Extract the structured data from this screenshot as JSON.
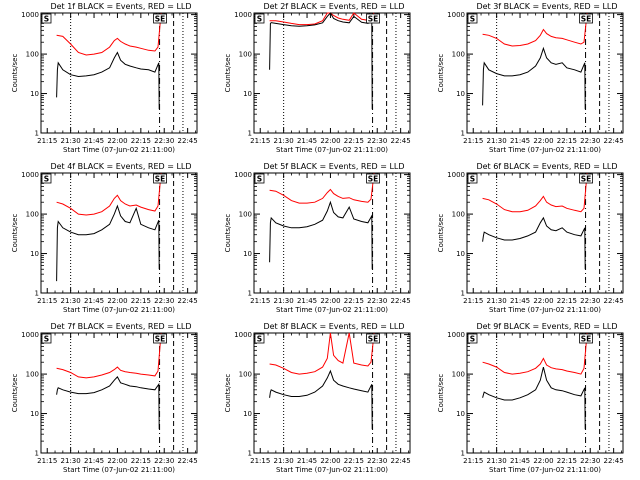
{
  "chart_data": {
    "type": "line",
    "x_tick_labels": [
      "21:15",
      "21:30",
      "21:45",
      "22:00",
      "22:15",
      "22:30",
      "22:45"
    ],
    "x_tick_minutes": [
      15,
      30,
      45,
      60,
      75,
      90,
      105
    ],
    "xlim_minutes": [
      11,
      111
    ],
    "y_tick_labels": [
      "1",
      "10",
      "100",
      "1000"
    ],
    "y_tick_values": [
      1,
      10,
      100,
      1000
    ],
    "ylim": [
      1,
      1100
    ],
    "y_scale": "log",
    "xlabel": "Start Time (07-Jun-02 21:11:00)",
    "ylabel": "Counts/sec",
    "series_names": [
      "Events",
      "LLD"
    ],
    "series_colors": {
      "Events": "#000000",
      "LLD": "#ff0000"
    },
    "markers": {
      "dotted_lines_minutes": [
        30,
        102
      ],
      "dash_dot_line_minutes": 87,
      "dashed_line_minutes": 96,
      "segment_start_box": "S",
      "segment_end_box": "SE"
    },
    "panels": [
      {
        "title": "Det 1f BLACK = Events, RED = LLD",
        "events": {
          "x": [
            21,
            21.5,
            22,
            25,
            30,
            35,
            40,
            45,
            50,
            55,
            58,
            60,
            62,
            65,
            68,
            72,
            75,
            80,
            84,
            86.5,
            86.8
          ],
          "y": [
            8,
            40,
            60,
            40,
            30,
            27,
            28,
            30,
            35,
            45,
            80,
            110,
            70,
            55,
            50,
            45,
            42,
            40,
            35,
            60,
            4
          ]
        },
        "lld": {
          "x": [
            21,
            25,
            30,
            35,
            40,
            45,
            50,
            55,
            58,
            60,
            62,
            65,
            68,
            72,
            75,
            80,
            84,
            86,
            88
          ],
          "y": [
            300,
            280,
            180,
            110,
            95,
            100,
            110,
            150,
            220,
            250,
            210,
            180,
            160,
            150,
            140,
            125,
            120,
            150,
            1100
          ]
        }
      },
      {
        "title": "Det 2f BLACK = Events, RED = LLD",
        "events": {
          "x": [
            21,
            21.5,
            22,
            25,
            30,
            35,
            40,
            45,
            50,
            55,
            58,
            60,
            62,
            65,
            68,
            72,
            75,
            80,
            84,
            86.5,
            86.8
          ],
          "y": [
            40,
            600,
            630,
            600,
            560,
            520,
            510,
            520,
            550,
            620,
            900,
            1200,
            800,
            700,
            650,
            620,
            900,
            640,
            600,
            650,
            4
          ]
        },
        "lld": {
          "x": [
            21,
            25,
            30,
            35,
            40,
            45,
            50,
            55,
            58,
            60,
            62,
            65,
            68,
            72,
            75,
            80,
            84,
            86,
            88
          ],
          "y": [
            700,
            700,
            650,
            600,
            560,
            560,
            580,
            700,
            1100,
            1300,
            950,
            820,
            760,
            720,
            1100,
            760,
            720,
            900,
            1100
          ]
        }
      },
      {
        "title": "Det 3f BLACK = Events, RED = LLD",
        "events": {
          "x": [
            21,
            21.5,
            22,
            25,
            30,
            35,
            40,
            45,
            50,
            55,
            58,
            60,
            62,
            65,
            68,
            72,
            75,
            80,
            84,
            86.5,
            86.8
          ],
          "y": [
            5,
            40,
            60,
            40,
            32,
            28,
            28,
            30,
            35,
            50,
            80,
            140,
            80,
            60,
            55,
            60,
            45,
            40,
            35,
            60,
            4
          ]
        },
        "lld": {
          "x": [
            21,
            25,
            30,
            35,
            40,
            45,
            50,
            55,
            58,
            60,
            62,
            65,
            68,
            72,
            75,
            80,
            84,
            86,
            88
          ],
          "y": [
            320,
            300,
            250,
            180,
            160,
            165,
            180,
            220,
            300,
            420,
            330,
            280,
            260,
            250,
            230,
            200,
            180,
            200,
            1100
          ]
        }
      },
      {
        "title": "Det 4f BLACK = Events, RED = LLD",
        "events": {
          "x": [
            21,
            21.5,
            22,
            25,
            30,
            35,
            40,
            45,
            50,
            55,
            58,
            60,
            62,
            65,
            68,
            72,
            75,
            80,
            84,
            86.5,
            86.8
          ],
          "y": [
            2,
            45,
            65,
            45,
            35,
            30,
            30,
            32,
            40,
            55,
            100,
            160,
            90,
            65,
            60,
            140,
            55,
            45,
            40,
            70,
            4
          ]
        },
        "lld": {
          "x": [
            21,
            25,
            30,
            35,
            40,
            45,
            50,
            55,
            58,
            60,
            62,
            65,
            68,
            72,
            75,
            80,
            84,
            86,
            88
          ],
          "y": [
            200,
            180,
            140,
            100,
            95,
            100,
            115,
            160,
            250,
            300,
            220,
            180,
            160,
            170,
            150,
            130,
            120,
            160,
            1100
          ]
        }
      },
      {
        "title": "Det 5f BLACK = Events, RED = LLD",
        "events": {
          "x": [
            21,
            21.5,
            22,
            25,
            30,
            35,
            40,
            45,
            50,
            55,
            58,
            60,
            62,
            65,
            68,
            72,
            75,
            80,
            84,
            86.5,
            86.8
          ],
          "y": [
            6,
            60,
            80,
            60,
            50,
            45,
            45,
            48,
            55,
            70,
            120,
            200,
            110,
            85,
            80,
            150,
            75,
            65,
            60,
            90,
            4
          ]
        },
        "lld": {
          "x": [
            21,
            25,
            30,
            35,
            40,
            45,
            50,
            55,
            58,
            60,
            62,
            65,
            68,
            72,
            75,
            80,
            84,
            86,
            88
          ],
          "y": [
            400,
            380,
            300,
            220,
            190,
            190,
            200,
            250,
            350,
            420,
            330,
            280,
            250,
            260,
            230,
            210,
            200,
            240,
            1100
          ]
        }
      },
      {
        "title": "Det 6f BLACK = Events, RED = LLD",
        "events": {
          "x": [
            21,
            21.5,
            22,
            25,
            30,
            35,
            40,
            45,
            50,
            55,
            58,
            60,
            62,
            65,
            68,
            72,
            75,
            80,
            84,
            86.5,
            86.8
          ],
          "y": [
            20,
            28,
            35,
            30,
            25,
            22,
            22,
            24,
            28,
            35,
            60,
            80,
            50,
            40,
            38,
            45,
            35,
            30,
            28,
            45,
            4
          ]
        },
        "lld": {
          "x": [
            21,
            25,
            30,
            35,
            40,
            45,
            50,
            55,
            58,
            60,
            62,
            65,
            68,
            72,
            75,
            80,
            84,
            86,
            88
          ],
          "y": [
            250,
            230,
            180,
            130,
            115,
            115,
            125,
            160,
            220,
            280,
            200,
            170,
            155,
            160,
            140,
            125,
            115,
            140,
            1100
          ]
        }
      },
      {
        "title": "Det 7f BLACK = Events, RED = LLD",
        "events": {
          "x": [
            21,
            21.5,
            22,
            25,
            30,
            35,
            40,
            45,
            50,
            55,
            58,
            60,
            62,
            65,
            68,
            72,
            75,
            80,
            84,
            86.5,
            86.8
          ],
          "y": [
            30,
            40,
            45,
            40,
            35,
            32,
            32,
            34,
            40,
            50,
            70,
            85,
            60,
            55,
            50,
            48,
            45,
            42,
            40,
            55,
            4
          ]
        },
        "lld": {
          "x": [
            21,
            25,
            30,
            35,
            40,
            45,
            50,
            55,
            58,
            60,
            62,
            65,
            68,
            72,
            75,
            80,
            84,
            86,
            88
          ],
          "y": [
            140,
            130,
            110,
            85,
            80,
            85,
            95,
            110,
            130,
            150,
            125,
            115,
            110,
            105,
            100,
            95,
            90,
            120,
            1100
          ]
        }
      },
      {
        "title": "Det 8f BLACK = Events, RED = LLD",
        "events": {
          "x": [
            21,
            21.5,
            22,
            25,
            30,
            35,
            40,
            45,
            50,
            55,
            58,
            60,
            62,
            65,
            68,
            72,
            75,
            80,
            84,
            86.5,
            86.8
          ],
          "y": [
            25,
            35,
            40,
            35,
            30,
            27,
            27,
            29,
            35,
            50,
            80,
            120,
            70,
            55,
            50,
            45,
            42,
            38,
            35,
            55,
            4
          ]
        },
        "lld": {
          "x": [
            21,
            25,
            30,
            35,
            40,
            45,
            50,
            55,
            58,
            60,
            62,
            65,
            68,
            72,
            75,
            80,
            84,
            86,
            88
          ],
          "y": [
            180,
            170,
            140,
            110,
            100,
            105,
            115,
            150,
            250,
            1100,
            300,
            220,
            190,
            1100,
            190,
            170,
            160,
            200,
            1100
          ]
        }
      },
      {
        "title": "Det 9f BLACK = Events, RED = LLD",
        "events": {
          "x": [
            21,
            21.5,
            22,
            25,
            30,
            35,
            40,
            45,
            50,
            55,
            58,
            60,
            62,
            65,
            68,
            72,
            75,
            80,
            84,
            86.5,
            86.8
          ],
          "y": [
            25,
            30,
            35,
            30,
            25,
            22,
            22,
            25,
            30,
            40,
            70,
            150,
            70,
            45,
            40,
            38,
            35,
            30,
            28,
            45,
            4
          ]
        },
        "lld": {
          "x": [
            21,
            25,
            30,
            35,
            40,
            45,
            50,
            55,
            58,
            60,
            62,
            65,
            68,
            72,
            75,
            80,
            84,
            86,
            88
          ],
          "y": [
            200,
            180,
            150,
            110,
            100,
            105,
            115,
            140,
            180,
            250,
            170,
            145,
            135,
            130,
            120,
            110,
            100,
            140,
            1100
          ]
        }
      }
    ]
  }
}
